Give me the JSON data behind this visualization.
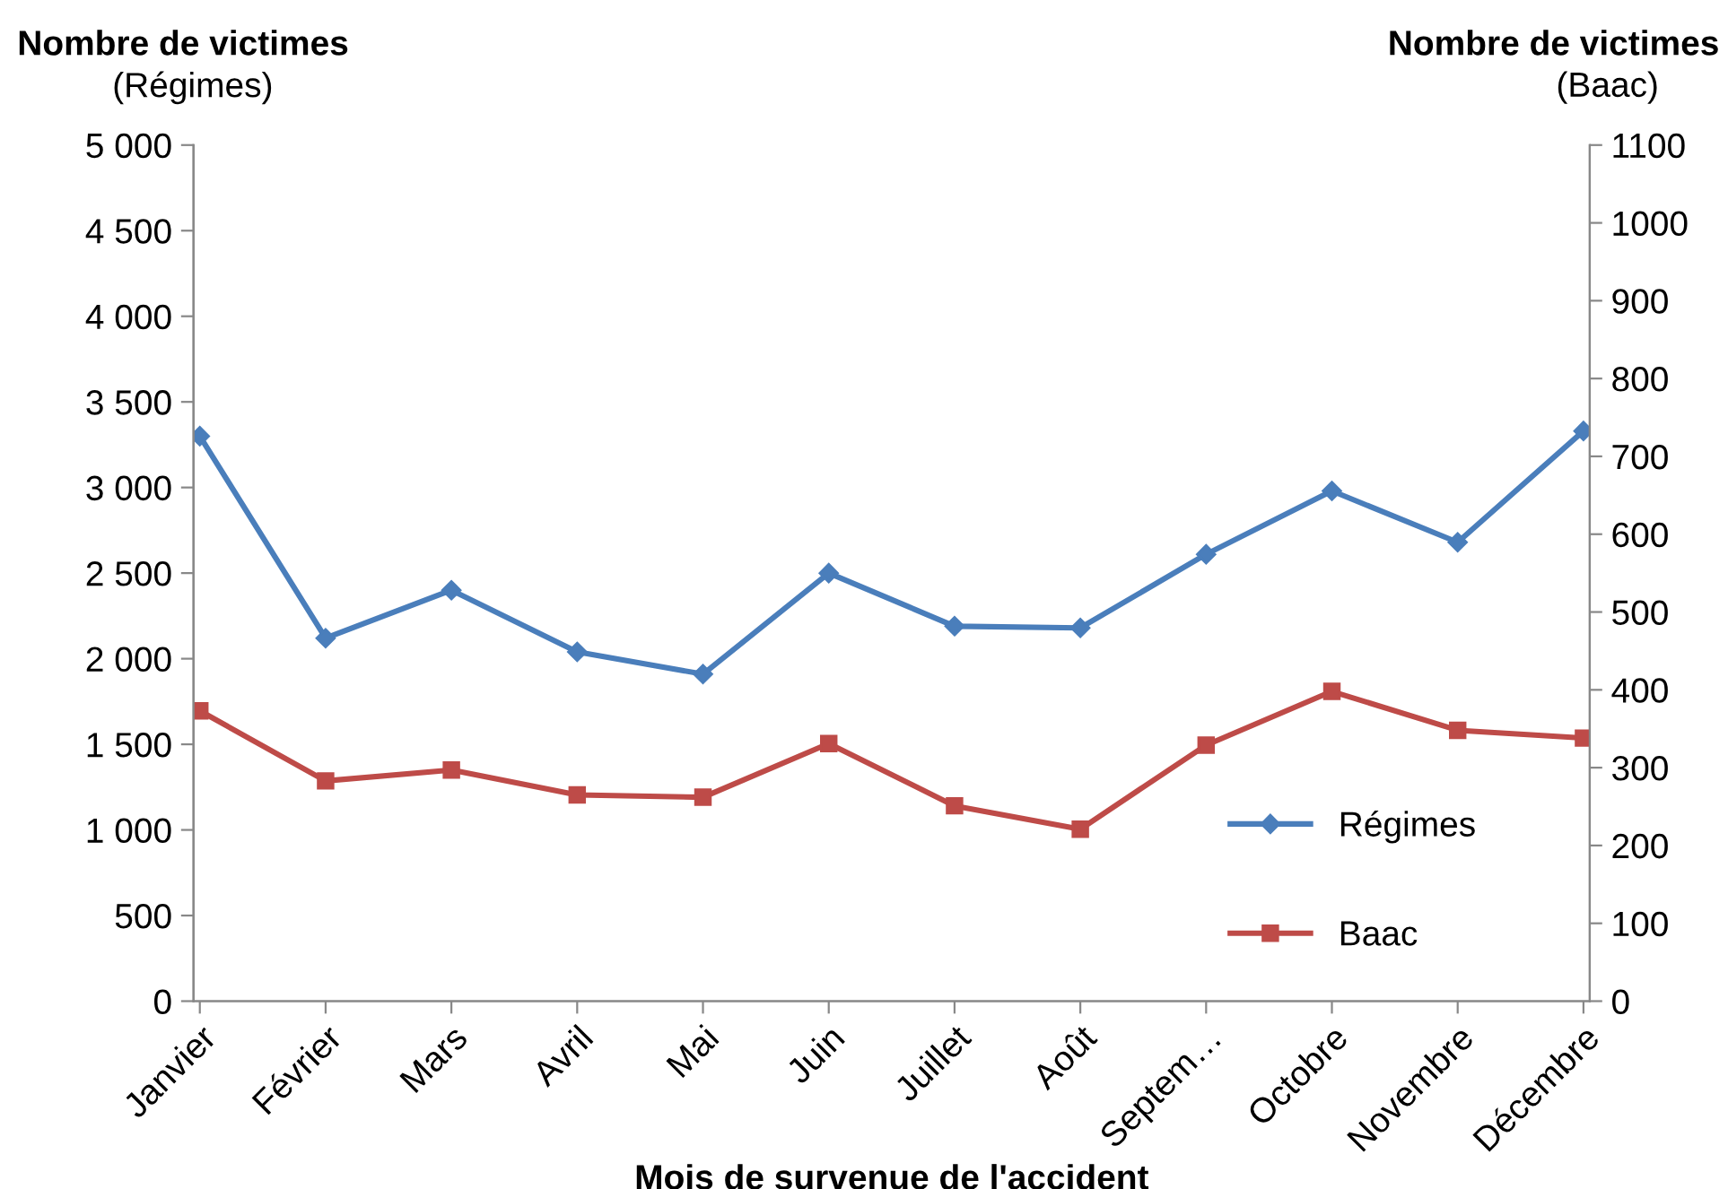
{
  "chart_data": {
    "type": "line",
    "xlabel": "Mois de survenue de l'accident",
    "ylabel": "Nombre de victimes\n(Régimes)",
    "y2label": "Nombre de victimes\n(Baac)",
    "categories": [
      "Janvier",
      "Février",
      "Mars",
      "Avril",
      "Mai",
      "Juin",
      "Juillet",
      "Août",
      "Septem…",
      "Octobre",
      "Novembre",
      "Décembre"
    ],
    "series": [
      {
        "name": "Régimes",
        "color": "#4a7ebb",
        "marker": "diamond",
        "values": [
          3300,
          2120,
          2400,
          2040,
          1910,
          2500,
          2190,
          2180,
          2610,
          2980,
          2680,
          3330
        ]
      },
      {
        "name": "Baac",
        "color": "#be4b48",
        "marker": "square",
        "axis": "y2",
        "values": [
          373,
          283,
          297,
          265,
          262,
          331,
          251,
          221,
          329,
          398,
          348,
          338
        ]
      }
    ],
    "ylim": [
      0,
      5000
    ],
    "yticks": [
      0,
      500,
      {
        "value": 1000,
        "label": "1 000"
      },
      {
        "value": 1500,
        "label": "1 500"
      },
      {
        "value": 2000,
        "label": "2 000"
      },
      {
        "value": 2500,
        "label": "2 500"
      },
      {
        "value": 3000,
        "label": "3 000"
      },
      {
        "value": 3500,
        "label": "3 500"
      },
      {
        "value": 4000,
        "label": "4 000"
      },
      {
        "value": 4500,
        "label": "4 500"
      },
      {
        "value": 5000,
        "label": "5 000"
      }
    ],
    "y2lim": [
      0,
      1100
    ],
    "y2ticks": [
      0,
      100,
      200,
      300,
      400,
      500,
      600,
      700,
      800,
      900,
      1000,
      1100
    ],
    "grid": false,
    "legend": "bottom right",
    "line_style": "solid"
  }
}
